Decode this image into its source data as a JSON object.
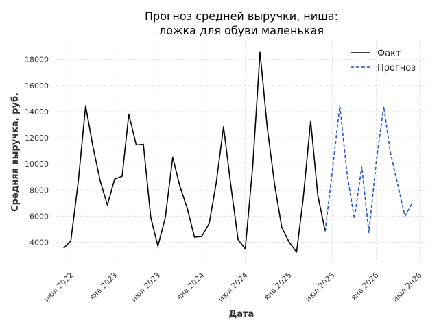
{
  "chart_data": {
    "type": "line",
    "title": [
      "Прогноз средней выручки, ниша:",
      "ложка для обуви маленькая"
    ],
    "xlabel": "Дата",
    "ylabel": "Средняя выручка, руб.",
    "xlim": [
      "2022-05-01",
      "2026-07-31"
    ],
    "ylim": [
      2400,
      19400
    ],
    "yticks": [
      4000,
      6000,
      8000,
      10000,
      12000,
      14000,
      16000,
      18000
    ],
    "xticks": [
      {
        "date": "2022-07-01",
        "label": "июл 2022"
      },
      {
        "date": "2023-01-01",
        "label": "янв 2023"
      },
      {
        "date": "2023-07-01",
        "label": "июл 2023"
      },
      {
        "date": "2024-01-01",
        "label": "янв 2024"
      },
      {
        "date": "2024-07-01",
        "label": "июл 2024"
      },
      {
        "date": "2025-01-01",
        "label": "янв 2025"
      },
      {
        "date": "2025-07-01",
        "label": "июл 2025"
      },
      {
        "date": "2026-01-01",
        "label": "янв 2026"
      },
      {
        "date": "2026-07-01",
        "label": "июл 2026"
      }
    ],
    "grid": true,
    "legend_position": "top-right",
    "series": [
      {
        "name": "Факт",
        "color": "#000000",
        "style": "solid",
        "x": [
          "2022-06",
          "2022-07",
          "2022-08",
          "2022-09",
          "2022-10",
          "2022-11",
          "2022-12",
          "2023-01",
          "2023-02",
          "2023-03",
          "2023-04",
          "2023-05",
          "2023-06",
          "2023-07",
          "2023-08",
          "2023-09",
          "2023-10",
          "2023-11",
          "2023-12",
          "2024-01",
          "2024-02",
          "2024-03",
          "2024-04",
          "2024-05",
          "2024-06",
          "2024-07",
          "2024-08",
          "2024-09",
          "2024-10",
          "2024-11",
          "2024-12",
          "2025-01",
          "2025-02",
          "2025-03",
          "2025-04",
          "2025-05",
          "2025-06",
          "2025-07"
        ],
        "y": [
          3550,
          4100,
          8600,
          14450,
          11400,
          8700,
          6850,
          8850,
          9050,
          13800,
          11450,
          11500,
          5900,
          3700,
          5900,
          10500,
          8300,
          6600,
          4400,
          4450,
          5450,
          8500,
          12850,
          8450,
          4200,
          3500,
          9800,
          18550,
          12800,
          8400,
          5150,
          4000,
          3250,
          7400,
          13300,
          7600,
          4850,
          null
        ]
      },
      {
        "name": "Прогноз",
        "color": "#1f4fd6",
        "style": "dashed",
        "x": [
          "2025-06",
          "2025-07",
          "2025-08",
          "2025-09",
          "2025-10",
          "2025-11",
          "2025-12",
          "2026-01",
          "2026-02",
          "2026-03",
          "2026-04",
          "2026-05",
          "2026-06",
          "2026-07"
        ],
        "y": [
          4850,
          9500,
          14450,
          9200,
          5800,
          9800,
          4750,
          10200,
          14400,
          10900,
          8400,
          6000,
          7000,
          null
        ]
      }
    ]
  }
}
